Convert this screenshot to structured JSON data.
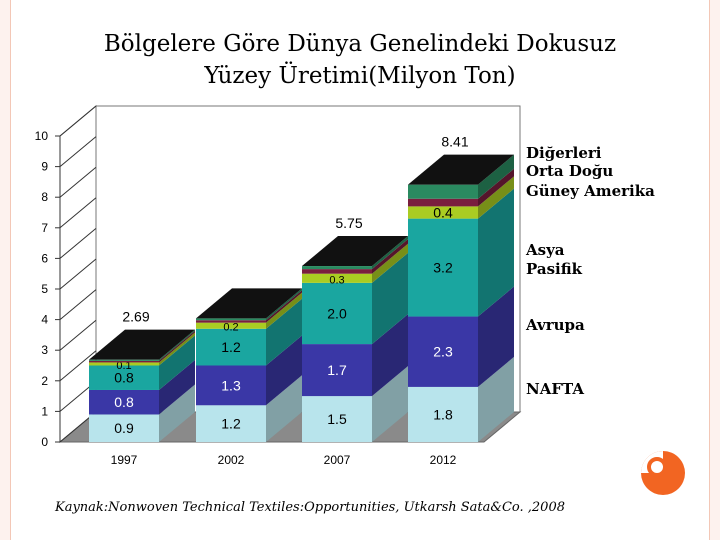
{
  "slide": {
    "title_line1": "Bölgelere Göre Dünya Genelindeki Dokusuz",
    "title_line2": "Yüzey Üretimi(Milyon Ton)",
    "caption": "Kaynak:Nonwoven Technical Textiles:Opportunities, Utkarsh Sata&Co. ,2008",
    "accent_color": "#f26522"
  },
  "chart_data": {
    "type": "bar",
    "stacked": true,
    "categories": [
      "1997",
      "2002",
      "2007",
      "2012"
    ],
    "ylim": [
      0,
      10
    ],
    "yticks": [
      "0",
      "1",
      "2",
      "3",
      "4",
      "5",
      "6",
      "7",
      "8",
      "9",
      "10"
    ],
    "totals": [
      "2.69",
      "",
      "5.75",
      "8.41"
    ],
    "series": [
      {
        "name": "NAFTA",
        "color": "#b8e4ec",
        "values": [
          0.9,
          1.2,
          1.5,
          1.8
        ],
        "labels": [
          "0.9",
          "1.2",
          "1.5",
          "1.8"
        ]
      },
      {
        "name": "Avrupa",
        "color": "#3a37a6",
        "values": [
          0.8,
          1.3,
          1.7,
          2.3
        ],
        "labels": [
          "0.8",
          "1.3",
          "1.7",
          "2.3"
        ]
      },
      {
        "name": "Asya Pasifik",
        "color": "#1aa6a0",
        "values": [
          0.8,
          1.2,
          2.0,
          3.2
        ],
        "labels": [
          "0.8",
          "1.2",
          "2.0",
          "3.2"
        ]
      },
      {
        "name": "Güney Amerika",
        "color": "#aacc22",
        "values": [
          0.1,
          0.2,
          0.3,
          0.4
        ],
        "labels": [
          "0.1",
          "0.2",
          "0.3",
          "0.4"
        ]
      },
      {
        "name": "Orta Doğu",
        "color": "#7a1e3e",
        "values": [
          0.05,
          0.08,
          0.15,
          0.25
        ],
        "labels": [
          "",
          "",
          "",
          ""
        ]
      },
      {
        "name": "Diğerleri",
        "color": "#2a8a60",
        "values": [
          0.04,
          0.06,
          0.1,
          0.46
        ],
        "labels": [
          "",
          "",
          "",
          ""
        ]
      }
    ],
    "legend": [
      {
        "text": "Diğerleri",
        "series": 5
      },
      {
        "text": "Orta Doğu",
        "series": 4
      },
      {
        "text": "Güney Amerika",
        "series": 3
      },
      {
        "text": "Asya",
        "series": 2
      },
      {
        "text": "Pasifik",
        "series": 2
      },
      {
        "text": "Avrupa",
        "series": 1
      },
      {
        "text": "NAFTA",
        "series": 0
      }
    ],
    "legend_placement": "right",
    "grid": false
  }
}
